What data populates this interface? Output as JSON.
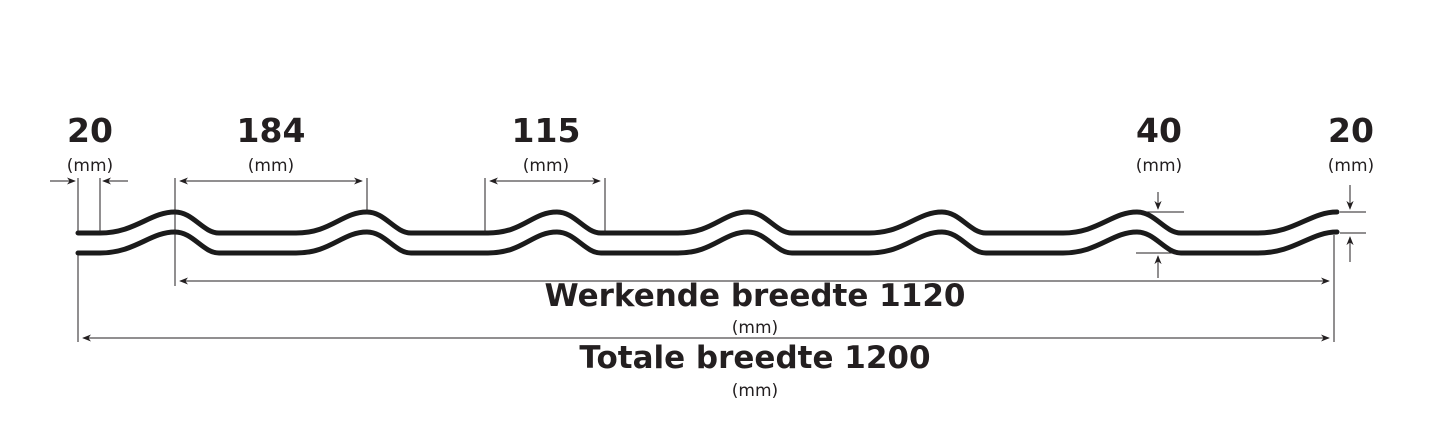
{
  "dimensions": {
    "left_edge": {
      "value": "20",
      "unit": "(mm)"
    },
    "rib_spacing": {
      "value": "184",
      "unit": "(mm)"
    },
    "rib_width": {
      "value": "115",
      "unit": "(mm)"
    },
    "rib_height": {
      "value": "40",
      "unit": "(mm)"
    },
    "right_edge": {
      "value": "20",
      "unit": "(mm)"
    }
  },
  "working_width": {
    "label": "Werkende breedte 1120",
    "unit": "(mm)"
  },
  "total_width": {
    "label": "Totale breedte 1200",
    "unit": "(mm)"
  },
  "colors": {
    "line": "#231f20",
    "background": "#ffffff"
  }
}
